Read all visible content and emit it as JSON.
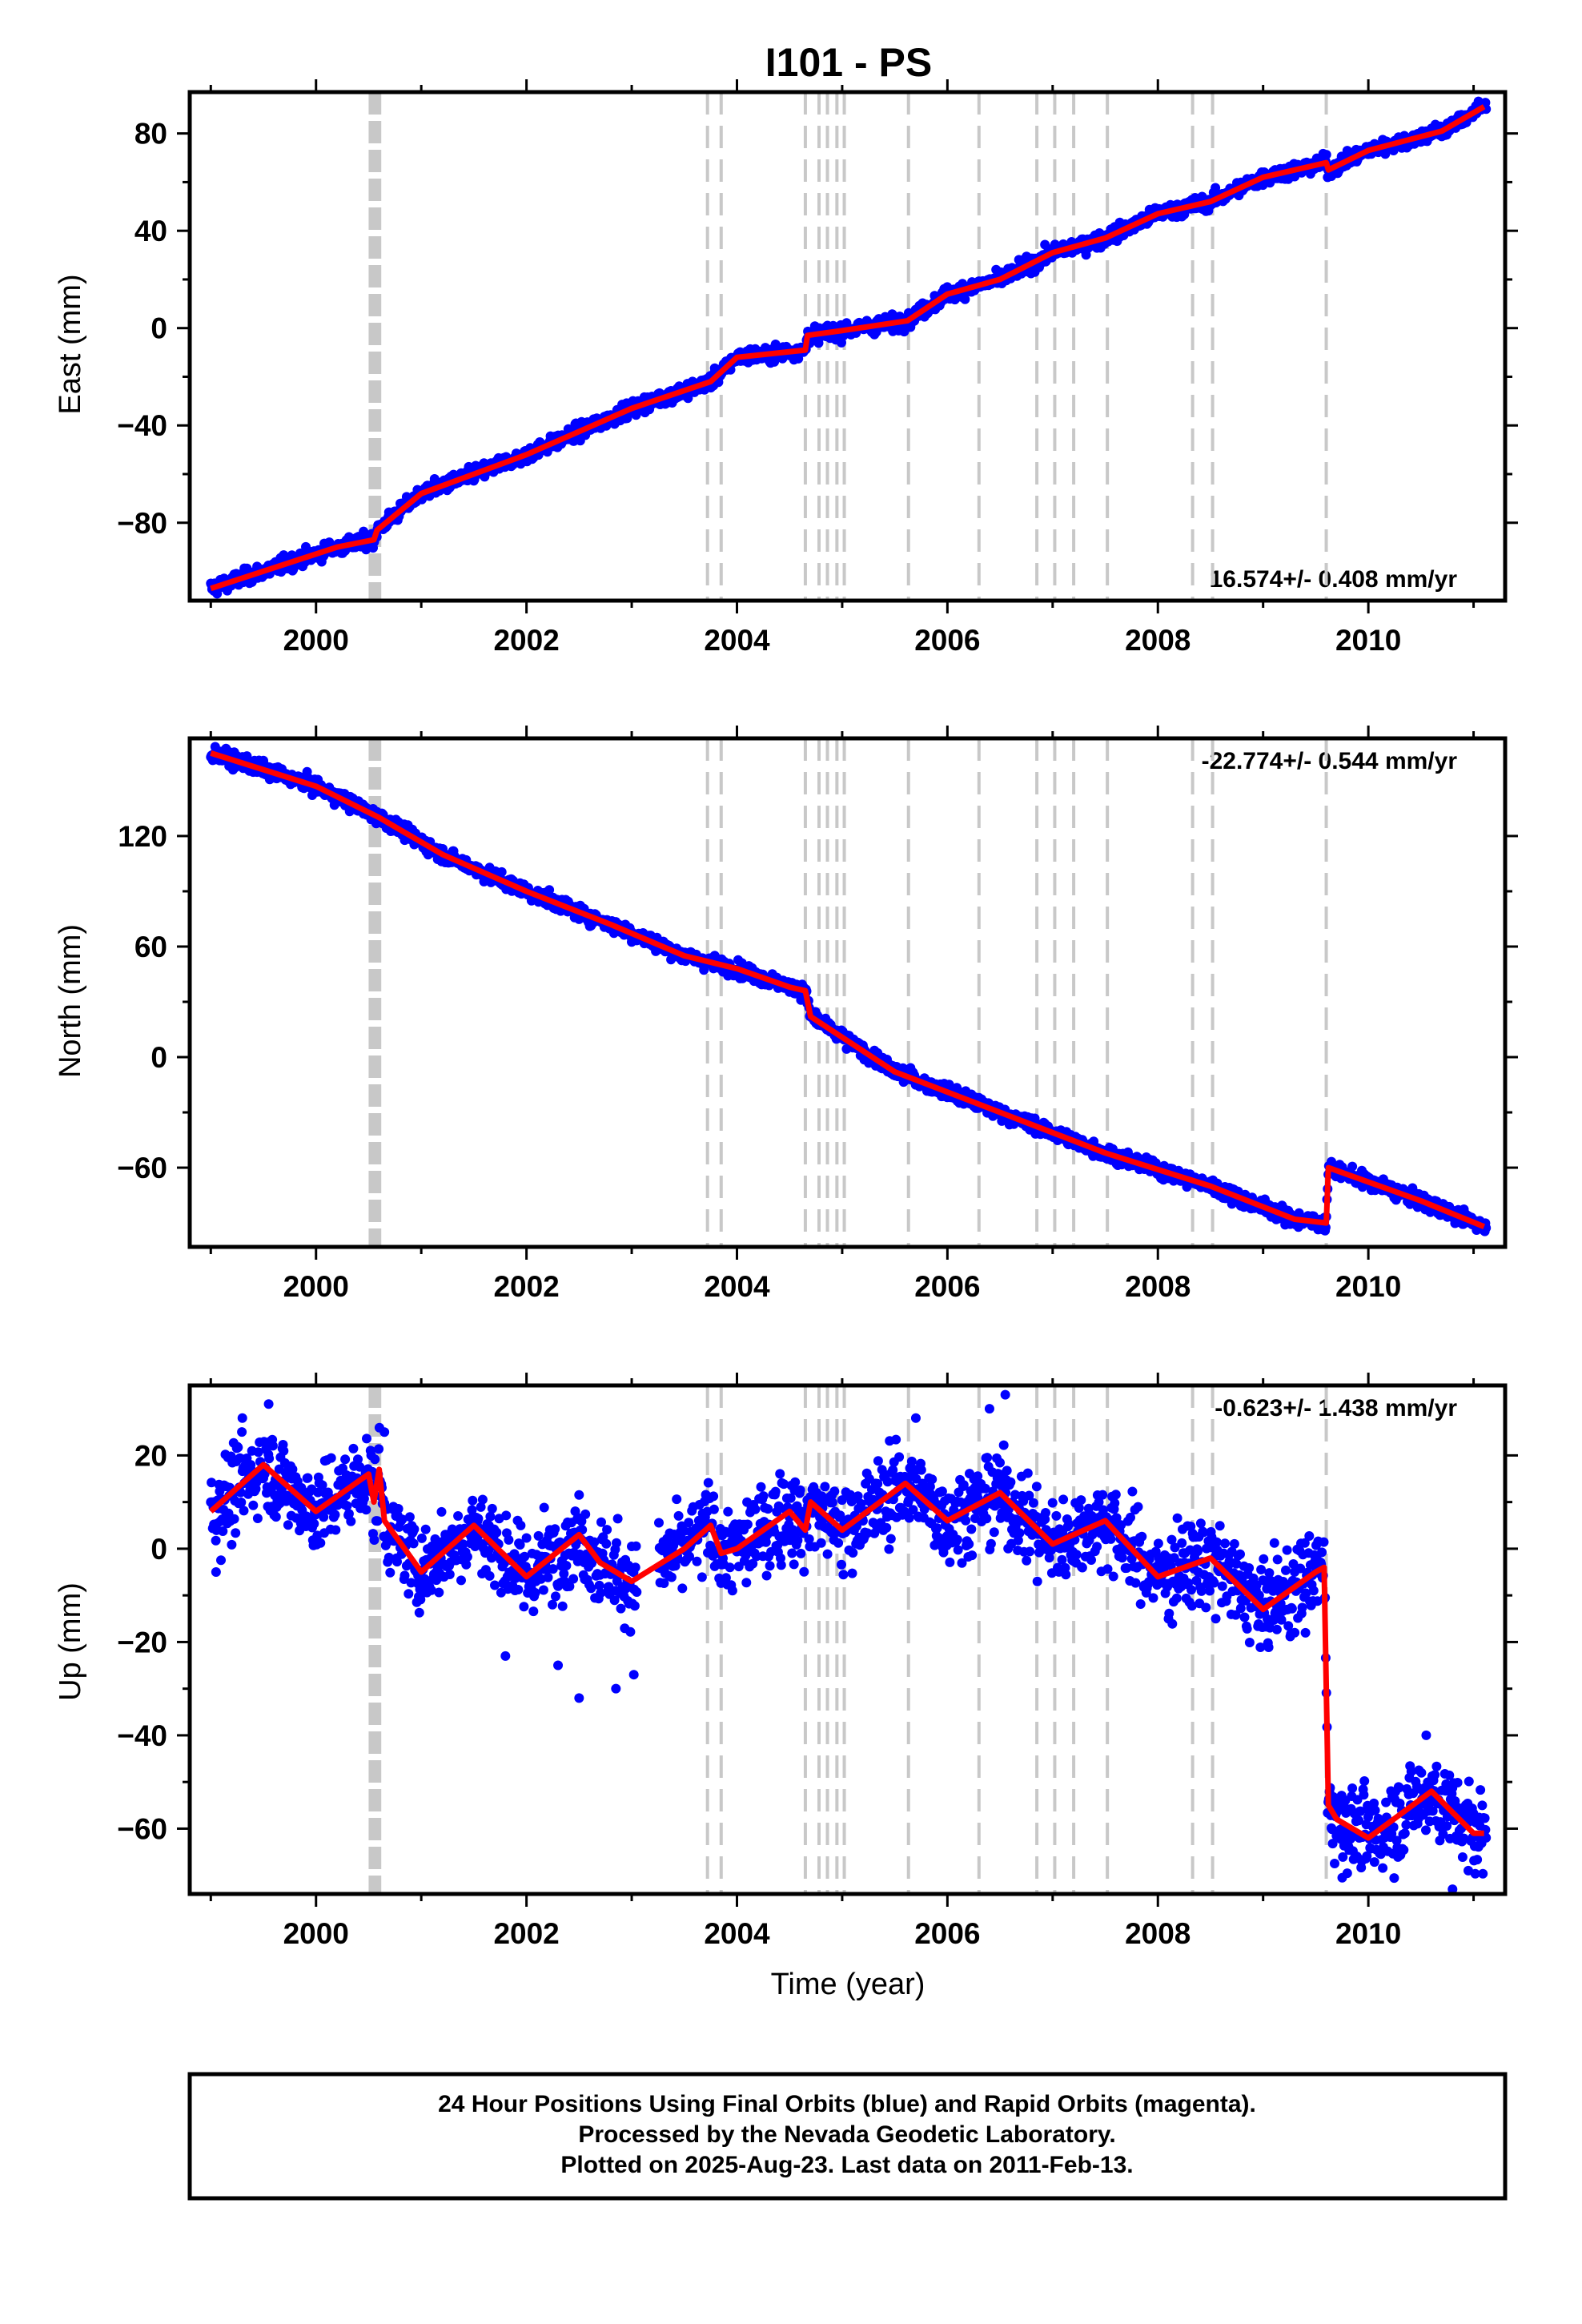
{
  "title": "I101 - PS",
  "colors": {
    "observations": "#0000ff",
    "model": "#ff0000",
    "marker_lines": "#c8c8c8",
    "frame": "#000000"
  },
  "chart_data": [
    {
      "type": "scatter",
      "name": "east",
      "ylabel": "East (mm)",
      "xlabel": "",
      "xlim": [
        1998.8,
        2011.3
      ],
      "ylim": [
        -112,
        97
      ],
      "xticks": [
        2000,
        2002,
        2004,
        2006,
        2008,
        2010
      ],
      "yticks": [
        -80,
        -40,
        0,
        40,
        80
      ],
      "rate_text": "16.574+/- 0.408 mm/yr",
      "rate_position": "bottom-right",
      "observation_scatter_mm": 2.2,
      "model_x": [
        1999.0,
        2000.2,
        2000.55,
        2000.58,
        2001.0,
        2002.0,
        2003.0,
        2003.75,
        2004.0,
        2004.65,
        2004.67,
        2005.0,
        2005.62,
        2006.0,
        2006.5,
        2007.0,
        2007.5,
        2008.0,
        2008.5,
        2009.0,
        2009.6,
        2009.62,
        2010.0,
        2010.7,
        2011.1
      ],
      "model_y": [
        -107,
        -90,
        -87,
        -83,
        -68,
        -52,
        -33,
        -22,
        -12,
        -9,
        -3,
        -1,
        3,
        14,
        20,
        31,
        37,
        47,
        52,
        62,
        68,
        65,
        73,
        81,
        91
      ]
    },
    {
      "type": "scatter",
      "name": "north",
      "ylabel": "North (mm)",
      "xlabel": "",
      "xlim": [
        1998.8,
        2011.3
      ],
      "ylim": [
        -103,
        173
      ],
      "xticks": [
        2000,
        2002,
        2004,
        2006,
        2008,
        2010
      ],
      "yticks": [
        -60,
        0,
        60,
        120
      ],
      "rate_text": "-22.774+/- 0.544 mm/yr",
      "rate_position": "top-right",
      "observation_scatter_mm": 2.8,
      "model_x": [
        1999.0,
        2000.0,
        2000.6,
        2001.2,
        2002.0,
        2002.8,
        2003.5,
        2004.0,
        2004.5,
        2004.65,
        2004.7,
        2005.5,
        2006.5,
        2007.5,
        2008.5,
        2009.3,
        2009.6,
        2009.62,
        2010.5,
        2011.1
      ],
      "model_y": [
        165,
        147,
        130,
        110,
        90,
        72,
        55,
        48,
        38,
        36,
        22,
        -8,
        -30,
        -52,
        -70,
        -88,
        -90,
        -60,
        -78,
        -92
      ]
    },
    {
      "type": "scatter",
      "name": "up",
      "ylabel": "Up (mm)",
      "xlabel": "Time (year)",
      "xlim": [
        1998.8,
        2011.3
      ],
      "ylim": [
        -74,
        35
      ],
      "xticks": [
        2000,
        2002,
        2004,
        2006,
        2008,
        2010
      ],
      "yticks": [
        -60,
        -40,
        -20,
        0,
        20
      ],
      "rate_text": "-0.623+/- 1.438 mm/yr",
      "rate_position": "top-right",
      "observation_scatter_mm": 6.5,
      "model_x": [
        1999.0,
        1999.5,
        2000.0,
        2000.5,
        2000.55,
        2000.6,
        2000.65,
        2001.0,
        2001.5,
        2002.0,
        2002.5,
        2002.7,
        2003.0,
        2003.5,
        2003.75,
        2003.85,
        2004.0,
        2004.5,
        2004.65,
        2004.7,
        2005.0,
        2005.6,
        2006.0,
        2006.5,
        2007.0,
        2007.5,
        2008.0,
        2008.5,
        2009.0,
        2009.5,
        2009.58,
        2009.62,
        2009.7,
        2010.0,
        2010.6,
        2011.0,
        2011.1
      ],
      "model_y": [
        8,
        18,
        8,
        16,
        10,
        17,
        6,
        -5,
        5,
        -6,
        3,
        -3,
        -7,
        0,
        5,
        -1,
        0,
        8,
        4,
        10,
        4,
        14,
        6,
        12,
        1,
        6,
        -6,
        -2,
        -13,
        -5,
        -4,
        -55,
        -58,
        -62,
        -52,
        -61,
        -61
      ],
      "observation_extra_x": [
        1999.05,
        1999.3,
        1999.55,
        2000.65,
        2001.8,
        2002.3,
        2002.5,
        2002.85,
        2003.02,
        2005.7,
        2006.4,
        2006.55,
        2008.55,
        2009.3,
        2010.55,
        2010.8
      ],
      "observation_extra_y": [
        -5,
        28,
        31,
        25,
        -23,
        -25,
        -32,
        -30,
        -27,
        28,
        30,
        33,
        -15,
        -18,
        -40,
        -73
      ]
    }
  ],
  "event_lines": [
    2003.72,
    2003.85,
    2004.65,
    2004.78,
    2004.86,
    2004.95,
    2005.02,
    2005.63,
    2006.3,
    2006.85,
    2007.02,
    2007.2,
    2007.52,
    2008.33,
    2008.52,
    2009.6
  ],
  "equipment_change_band": [
    2000.5,
    2000.62
  ],
  "footer": {
    "line1": "24 Hour Positions Using Final Orbits (blue) and Rapid Orbits (magenta).",
    "line2": "Processed by the Nevada Geodetic Laboratory.",
    "line3": "Plotted on 2025-Aug-23. Last data on 2011-Feb-13."
  }
}
